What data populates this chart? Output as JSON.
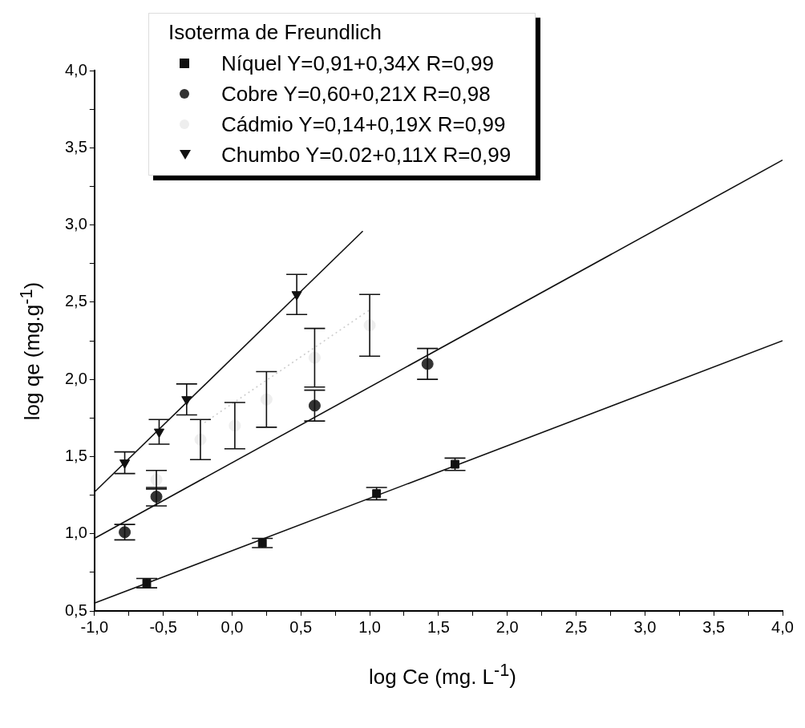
{
  "chart_data": {
    "type": "scatter",
    "xlabel": "log Ce (mg. L$^{-1}$)",
    "ylabel": "log qe (mg.g$^{-1}$)",
    "legend_title": "Isoterma de Freundlich",
    "legend": "top",
    "grid": false,
    "xlim": [
      -1,
      4
    ],
    "ylim": [
      0.5,
      4
    ],
    "xticks": [
      {
        "value": -1,
        "label": "-1,0"
      },
      {
        "value": -0.75,
        "label": null
      },
      {
        "value": -0.5,
        "label": "-0,5"
      },
      {
        "value": -0.25,
        "label": null
      },
      {
        "value": 0,
        "label": "0,0"
      },
      {
        "value": 0.25,
        "label": null
      },
      {
        "value": 0.5,
        "label": "0,5"
      },
      {
        "value": 0.75,
        "label": null
      },
      {
        "value": 1,
        "label": "1,0"
      },
      {
        "value": 1.25,
        "label": null
      },
      {
        "value": 1.5,
        "label": "1,5"
      },
      {
        "value": 1.75,
        "label": null
      },
      {
        "value": 2,
        "label": "2,0"
      },
      {
        "value": 2.25,
        "label": null
      },
      {
        "value": 2.5,
        "label": "2,5"
      },
      {
        "value": 2.75,
        "label": null
      },
      {
        "value": 3,
        "label": "3,0"
      },
      {
        "value": 3.25,
        "label": null
      },
      {
        "value": 3.5,
        "label": "3,5"
      },
      {
        "value": 3.75,
        "label": null
      },
      {
        "value": 4,
        "label": "4,0"
      }
    ],
    "yticks": [
      {
        "value": 0.5,
        "label": "0,5"
      },
      {
        "value": 0.75,
        "label": null
      },
      {
        "value": 1,
        "label": "1,0"
      },
      {
        "value": 1.25,
        "label": null
      },
      {
        "value": 1.5,
        "label": "1,5"
      },
      {
        "value": 1.75,
        "label": null
      },
      {
        "value": 2,
        "label": "2,0"
      },
      {
        "value": 2.25,
        "label": null
      },
      {
        "value": 2.5,
        "label": "2,5"
      },
      {
        "value": 2.75,
        "label": null
      },
      {
        "value": 3,
        "label": "3,0"
      },
      {
        "value": 3.25,
        "label": null
      },
      {
        "value": 3.5,
        "label": "3,5"
      },
      {
        "value": 3.75,
        "label": null
      },
      {
        "value": 4,
        "label": "4,0"
      }
    ],
    "series": [
      {
        "name": "Níquel Y=0,91+0,34X R=0,99",
        "marker": "square",
        "color": "#111111",
        "x": [
          -0.62,
          0.22,
          1.05,
          1.62
        ],
        "values": [
          0.68,
          0.94,
          1.26,
          1.45
        ],
        "errors": [
          0.03,
          0.03,
          0.04,
          0.04
        ]
      },
      {
        "name": "Cobre Y=0,60+0,21X  R=0,98",
        "marker": "circle",
        "color": "#333333",
        "x": [
          -0.78,
          -0.55,
          0.6,
          1.42
        ],
        "values": [
          1.01,
          1.24,
          1.83,
          2.1
        ],
        "errors": [
          0.05,
          0.06,
          0.1,
          0.1
        ]
      },
      {
        "name": "Cádmio Y=0,14+0,19X R=0,99",
        "marker": "circle",
        "color": "#eeeeee",
        "x": [
          -0.55,
          -0.23,
          0.02,
          0.25,
          0.6,
          1.0
        ],
        "values": [
          1.35,
          1.61,
          1.7,
          1.87,
          2.14,
          2.35
        ],
        "errors": [
          0.06,
          0.13,
          0.15,
          0.18,
          0.19,
          0.2
        ]
      },
      {
        "name": "Chumbo Y=0.02+0,11X R=0,99",
        "marker": "triangle",
        "color": "#111111",
        "x": [
          -0.78,
          -0.53,
          -0.33,
          0.47
        ],
        "values": [
          1.46,
          1.66,
          1.87,
          2.55
        ],
        "errors": [
          0.07,
          0.08,
          0.1,
          0.13
        ]
      },
      {
        "type": "line",
        "color": "#111111",
        "line_style": "solid",
        "x": [
          -1,
          4
        ],
        "values": [
          0.55,
          2.25
        ]
      },
      {
        "type": "line",
        "color": "#111111",
        "line_style": "solid",
        "x": [
          -1,
          4
        ],
        "values": [
          0.97,
          3.42
        ]
      },
      {
        "type": "line",
        "color": "#cccccc",
        "line_style": "dotted",
        "x": [
          -0.2,
          1.0
        ],
        "values": [
          1.72,
          2.45
        ]
      },
      {
        "type": "line",
        "color": "#111111",
        "line_style": "solid",
        "x": [
          -1,
          0.95
        ],
        "values": [
          1.27,
          2.96
        ]
      }
    ]
  }
}
